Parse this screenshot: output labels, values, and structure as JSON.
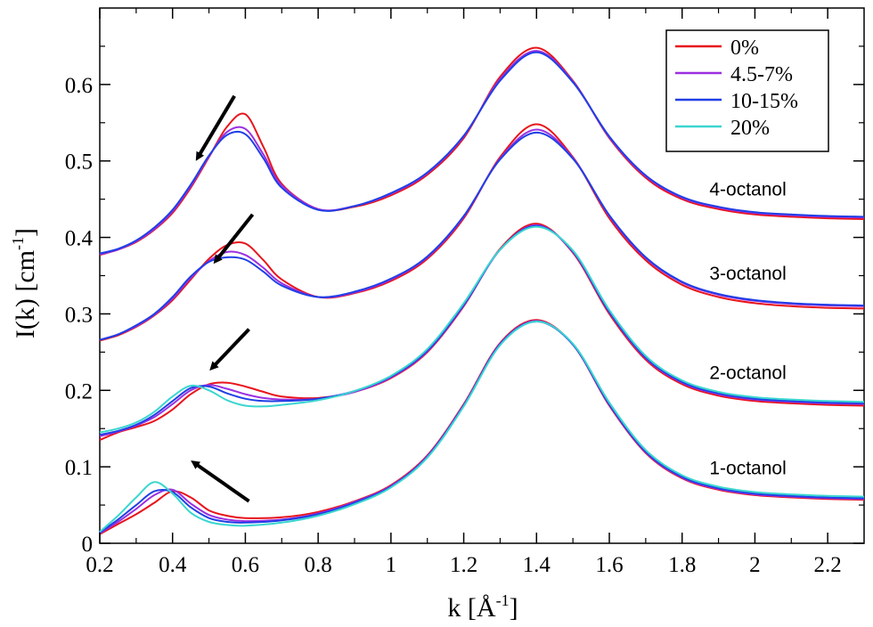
{
  "chart_data": {
    "type": "line",
    "xlabel": {
      "main": "k  [Å",
      "sup": "-1",
      "close": "]"
    },
    "ylabel": {
      "main": "I(k)  [cm",
      "sup": "-1",
      "close": "]"
    },
    "xlim": [
      0.2,
      2.3
    ],
    "ylim": [
      0,
      0.7
    ],
    "xticks": [
      0.2,
      0.4,
      0.6,
      0.8,
      1,
      1.2,
      1.4,
      1.6,
      1.8,
      2,
      2.2
    ],
    "xtick_labels": [
      "0.2",
      "0.4",
      "0.6",
      "0.8",
      "1",
      "1.2",
      "1.4",
      "1.6",
      "1.8",
      "2",
      "2.2"
    ],
    "yticks": [
      0,
      0.1,
      0.2,
      0.3,
      0.4,
      0.5,
      0.6
    ],
    "ytick_labels": [
      "0",
      "0.1",
      "0.2",
      "0.3",
      "0.4",
      "0.5",
      "0.6"
    ],
    "grid": false,
    "legend": {
      "position": "top-right",
      "entries": [
        {
          "label": "0%",
          "color": "#e8141c"
        },
        {
          "label": "4.5-7%",
          "color": "#9b30e0"
        },
        {
          "label": "10-15%",
          "color": "#1f3fe6"
        },
        {
          "label": "20%",
          "color": "#3ad6d0"
        }
      ]
    },
    "series_colors": {
      "0%": "#e8141c",
      "4.5-7%": "#9b30e0",
      "10-15%": "#1f3fe6",
      "20%": "#3ad6d0"
    },
    "groups": [
      {
        "label": "4-octanol",
        "label_x": 1.875,
        "label_y": 0.455,
        "arrow": {
          "from": [
            0.57,
            0.585
          ],
          "to": [
            0.47,
            0.505
          ]
        },
        "series": [
          {
            "name": "0%",
            "x": [
              0.2,
              0.25,
              0.3,
              0.35,
              0.4,
              0.45,
              0.5,
              0.55,
              0.6,
              0.65,
              0.7,
              0.8,
              0.9,
              1.0,
              1.1,
              1.2,
              1.3,
              1.4,
              1.5,
              1.6,
              1.7,
              1.8,
              1.9,
              2.0,
              2.1,
              2.2,
              2.3
            ],
            "y": [
              0.377,
              0.384,
              0.394,
              0.41,
              0.432,
              0.465,
              0.505,
              0.545,
              0.561,
              0.518,
              0.47,
              0.437,
              0.44,
              0.455,
              0.482,
              0.53,
              0.61,
              0.648,
              0.605,
              0.53,
              0.478,
              0.45,
              0.437,
              0.43,
              0.427,
              0.425,
              0.424
            ]
          },
          {
            "name": "4.5-7%",
            "x": [
              0.2,
              0.25,
              0.3,
              0.35,
              0.4,
              0.45,
              0.5,
              0.55,
              0.6,
              0.65,
              0.7,
              0.8,
              0.9,
              1.0,
              1.1,
              1.2,
              1.3,
              1.4,
              1.5,
              1.6,
              1.7,
              1.8,
              1.9,
              2.0,
              2.1,
              2.2,
              2.3
            ],
            "y": [
              0.378,
              0.384,
              0.395,
              0.411,
              0.434,
              0.467,
              0.506,
              0.538,
              0.542,
              0.508,
              0.468,
              0.437,
              0.441,
              0.457,
              0.484,
              0.532,
              0.607,
              0.644,
              0.604,
              0.531,
              0.48,
              0.452,
              0.439,
              0.432,
              0.429,
              0.427,
              0.426
            ]
          },
          {
            "name": "10-15%",
            "x": [
              0.2,
              0.25,
              0.3,
              0.35,
              0.4,
              0.45,
              0.5,
              0.55,
              0.6,
              0.65,
              0.7,
              0.8,
              0.9,
              1.0,
              1.1,
              1.2,
              1.3,
              1.4,
              1.5,
              1.6,
              1.7,
              1.8,
              1.9,
              2.0,
              2.1,
              2.2,
              2.3
            ],
            "y": [
              0.379,
              0.385,
              0.396,
              0.413,
              0.436,
              0.469,
              0.507,
              0.534,
              0.535,
              0.503,
              0.465,
              0.436,
              0.441,
              0.458,
              0.485,
              0.533,
              0.605,
              0.642,
              0.603,
              0.532,
              0.481,
              0.453,
              0.44,
              0.433,
              0.43,
              0.428,
              0.427
            ]
          }
        ]
      },
      {
        "label": "3-octanol",
        "label_x": 1.875,
        "label_y": 0.345,
        "arrow": {
          "from": [
            0.62,
            0.43
          ],
          "to": [
            0.52,
            0.37
          ]
        },
        "series": [
          {
            "name": "0%",
            "x": [
              0.2,
              0.25,
              0.3,
              0.35,
              0.4,
              0.45,
              0.5,
              0.55,
              0.6,
              0.65,
              0.7,
              0.8,
              0.9,
              1.0,
              1.1,
              1.2,
              1.3,
              1.4,
              1.5,
              1.6,
              1.7,
              1.8,
              1.9,
              2.0,
              2.1,
              2.2,
              2.3
            ],
            "y": [
              0.265,
              0.272,
              0.283,
              0.298,
              0.318,
              0.345,
              0.372,
              0.39,
              0.392,
              0.37,
              0.345,
              0.322,
              0.327,
              0.343,
              0.372,
              0.425,
              0.505,
              0.548,
              0.505,
              0.425,
              0.37,
              0.338,
              0.322,
              0.314,
              0.31,
              0.308,
              0.307
            ]
          },
          {
            "name": "4.5-7%",
            "x": [
              0.2,
              0.25,
              0.3,
              0.35,
              0.4,
              0.45,
              0.5,
              0.55,
              0.6,
              0.65,
              0.7,
              0.8,
              0.9,
              1.0,
              1.1,
              1.2,
              1.3,
              1.4,
              1.5,
              1.6,
              1.7,
              1.8,
              1.9,
              2.0,
              2.1,
              2.2,
              2.3
            ],
            "y": [
              0.266,
              0.273,
              0.284,
              0.299,
              0.32,
              0.347,
              0.369,
              0.381,
              0.377,
              0.36,
              0.34,
              0.322,
              0.328,
              0.345,
              0.374,
              0.427,
              0.503,
              0.541,
              0.504,
              0.428,
              0.373,
              0.341,
              0.325,
              0.317,
              0.313,
              0.311,
              0.31
            ]
          },
          {
            "name": "10-15%",
            "x": [
              0.2,
              0.25,
              0.3,
              0.35,
              0.4,
              0.45,
              0.5,
              0.55,
              0.6,
              0.65,
              0.7,
              0.8,
              0.9,
              1.0,
              1.1,
              1.2,
              1.3,
              1.4,
              1.5,
              1.6,
              1.7,
              1.8,
              1.9,
              2.0,
              2.1,
              2.2,
              2.3
            ],
            "y": [
              0.266,
              0.273,
              0.285,
              0.3,
              0.322,
              0.349,
              0.368,
              0.374,
              0.371,
              0.355,
              0.337,
              0.322,
              0.329,
              0.346,
              0.375,
              0.428,
              0.502,
              0.537,
              0.503,
              0.429,
              0.374,
              0.342,
              0.326,
              0.318,
              0.314,
              0.312,
              0.311
            ]
          }
        ]
      },
      {
        "label": "2-octanol",
        "label_x": 1.875,
        "label_y": 0.215,
        "arrow": {
          "from": [
            0.61,
            0.28
          ],
          "to": [
            0.51,
            0.23
          ]
        },
        "series": [
          {
            "name": "0%",
            "x": [
              0.2,
              0.25,
              0.3,
              0.35,
              0.4,
              0.45,
              0.5,
              0.55,
              0.6,
              0.65,
              0.7,
              0.8,
              0.9,
              1.0,
              1.1,
              1.2,
              1.3,
              1.4,
              1.5,
              1.6,
              1.7,
              1.8,
              1.9,
              2.0,
              2.1,
              2.2,
              2.3
            ],
            "y": [
              0.135,
              0.145,
              0.152,
              0.16,
              0.175,
              0.195,
              0.208,
              0.21,
              0.205,
              0.198,
              0.192,
              0.19,
              0.198,
              0.216,
              0.25,
              0.31,
              0.385,
              0.418,
              0.38,
              0.3,
              0.24,
              0.208,
              0.193,
              0.186,
              0.183,
              0.181,
              0.18
            ]
          },
          {
            "name": "4.5-7%",
            "x": [
              0.2,
              0.25,
              0.3,
              0.35,
              0.4,
              0.45,
              0.5,
              0.55,
              0.6,
              0.65,
              0.7,
              0.8,
              0.9,
              1.0,
              1.1,
              1.2,
              1.3,
              1.4,
              1.5,
              1.6,
              1.7,
              1.8,
              1.9,
              2.0,
              2.1,
              2.2,
              2.3
            ],
            "y": [
              0.14,
              0.146,
              0.154,
              0.165,
              0.182,
              0.2,
              0.207,
              0.202,
              0.195,
              0.19,
              0.188,
              0.189,
              0.198,
              0.217,
              0.251,
              0.311,
              0.384,
              0.416,
              0.381,
              0.302,
              0.242,
              0.21,
              0.195,
              0.188,
              0.185,
              0.183,
              0.182
            ]
          },
          {
            "name": "10-15%",
            "x": [
              0.2,
              0.25,
              0.3,
              0.35,
              0.4,
              0.45,
              0.5,
              0.55,
              0.6,
              0.65,
              0.7,
              0.8,
              0.9,
              1.0,
              1.1,
              1.2,
              1.3,
              1.4,
              1.5,
              1.6,
              1.7,
              1.8,
              1.9,
              2.0,
              2.1,
              2.2,
              2.3
            ],
            "y": [
              0.142,
              0.147,
              0.155,
              0.168,
              0.186,
              0.203,
              0.205,
              0.196,
              0.189,
              0.186,
              0.186,
              0.189,
              0.199,
              0.218,
              0.252,
              0.312,
              0.384,
              0.415,
              0.382,
              0.303,
              0.243,
              0.211,
              0.196,
              0.189,
              0.186,
              0.184,
              0.183
            ]
          },
          {
            "name": "20%",
            "x": [
              0.2,
              0.25,
              0.3,
              0.35,
              0.4,
              0.45,
              0.5,
              0.55,
              0.6,
              0.65,
              0.7,
              0.8,
              0.9,
              1.0,
              1.1,
              1.2,
              1.3,
              1.4,
              1.5,
              1.6,
              1.7,
              1.8,
              1.9,
              2.0,
              2.1,
              2.2,
              2.3
            ],
            "y": [
              0.145,
              0.15,
              0.158,
              0.172,
              0.192,
              0.206,
              0.2,
              0.187,
              0.18,
              0.179,
              0.181,
              0.187,
              0.199,
              0.219,
              0.254,
              0.314,
              0.384,
              0.414,
              0.383,
              0.305,
              0.245,
              0.213,
              0.198,
              0.191,
              0.188,
              0.186,
              0.185
            ]
          }
        ]
      },
      {
        "label": "1-octanol",
        "label_x": 1.875,
        "label_y": 0.09,
        "arrow": {
          "from": [
            0.61,
            0.055
          ],
          "to": [
            0.46,
            0.105
          ]
        },
        "series": [
          {
            "name": "0%",
            "x": [
              0.2,
              0.25,
              0.3,
              0.35,
              0.4,
              0.45,
              0.5,
              0.55,
              0.6,
              0.7,
              0.8,
              0.9,
              1.0,
              1.1,
              1.2,
              1.3,
              1.4,
              1.5,
              1.6,
              1.7,
              1.8,
              1.9,
              2.0,
              2.1,
              2.2,
              2.3
            ],
            "y": [
              0.012,
              0.025,
              0.038,
              0.053,
              0.068,
              0.06,
              0.043,
              0.036,
              0.033,
              0.034,
              0.041,
              0.055,
              0.076,
              0.115,
              0.182,
              0.262,
              0.292,
              0.26,
              0.18,
              0.118,
              0.085,
              0.07,
              0.063,
              0.06,
              0.058,
              0.057
            ]
          },
          {
            "name": "4.5-7%",
            "x": [
              0.2,
              0.25,
              0.3,
              0.35,
              0.4,
              0.45,
              0.5,
              0.55,
              0.6,
              0.7,
              0.8,
              0.9,
              1.0,
              1.1,
              1.2,
              1.3,
              1.4,
              1.5,
              1.6,
              1.7,
              1.8,
              1.9,
              2.0,
              2.1,
              2.2,
              2.3
            ],
            "y": [
              0.013,
              0.028,
              0.045,
              0.063,
              0.07,
              0.052,
              0.037,
              0.031,
              0.029,
              0.031,
              0.039,
              0.054,
              0.075,
              0.114,
              0.181,
              0.261,
              0.291,
              0.26,
              0.181,
              0.119,
              0.086,
              0.071,
              0.064,
              0.061,
              0.059,
              0.058
            ]
          },
          {
            "name": "10-15%",
            "x": [
              0.2,
              0.25,
              0.3,
              0.35,
              0.4,
              0.45,
              0.5,
              0.55,
              0.6,
              0.7,
              0.8,
              0.9,
              1.0,
              1.1,
              1.2,
              1.3,
              1.4,
              1.5,
              1.6,
              1.7,
              1.8,
              1.9,
              2.0,
              2.1,
              2.2,
              2.3
            ],
            "y": [
              0.014,
              0.031,
              0.05,
              0.068,
              0.067,
              0.047,
              0.033,
              0.028,
              0.027,
              0.03,
              0.038,
              0.053,
              0.074,
              0.113,
              0.18,
              0.26,
              0.29,
              0.26,
              0.182,
              0.12,
              0.087,
              0.072,
              0.065,
              0.062,
              0.06,
              0.059
            ]
          },
          {
            "name": "20%",
            "x": [
              0.2,
              0.25,
              0.3,
              0.35,
              0.4,
              0.45,
              0.5,
              0.55,
              0.6,
              0.7,
              0.8,
              0.9,
              1.0,
              1.1,
              1.2,
              1.3,
              1.4,
              1.5,
              1.6,
              1.7,
              1.8,
              1.9,
              2.0,
              2.1,
              2.2,
              2.3
            ],
            "y": [
              0.015,
              0.036,
              0.06,
              0.08,
              0.065,
              0.04,
              0.028,
              0.024,
              0.023,
              0.027,
              0.036,
              0.051,
              0.073,
              0.112,
              0.179,
              0.259,
              0.29,
              0.261,
              0.184,
              0.122,
              0.089,
              0.074,
              0.067,
              0.064,
              0.062,
              0.061
            ]
          }
        ]
      }
    ]
  }
}
